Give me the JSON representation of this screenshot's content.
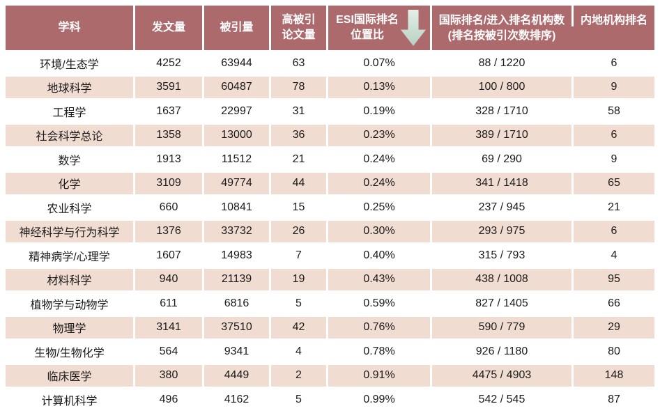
{
  "colors": {
    "header_bg": "#ad6a6d",
    "row_alt_bg": "#f1dcd2",
    "bottom_rule": "#9e575d",
    "arrow_top": "#e3efe7",
    "arrow_bottom": "#b7d1c1"
  },
  "icons": {
    "esi_sort": "arrow-down"
  },
  "header": {
    "subject": "学科",
    "pubs": "发文量",
    "cites": "被引量",
    "highly_cited_line1": "高被引",
    "highly_cited_line2": "论文量",
    "esi_line1": "ESI国际排名",
    "esi_line2": "位置比",
    "intl_line1": "国际排名/进入排名机构数",
    "intl_line2": "(排名按被引次数排序)",
    "mainland": "内地机构排名"
  },
  "chart_data": {
    "type": "table",
    "title": "",
    "columns": [
      "学科",
      "发文量",
      "被引量",
      "高被引论文量",
      "ESI国际排名位置比",
      "国际排名/进入排名机构数(排名按被引次数排序)",
      "内地机构排名"
    ],
    "sort": {
      "column": "ESI国际排名位置比",
      "direction": "ascending-indicator-arrow-down"
    },
    "rows": [
      [
        "环境/生态学",
        "4252",
        "63944",
        "63",
        "0.07%",
        "88 / 1220",
        "6"
      ],
      [
        "地球科学",
        "3591",
        "60487",
        "78",
        "0.13%",
        "100 / 800",
        "9"
      ],
      [
        "工程学",
        "1637",
        "22997",
        "31",
        "0.19%",
        "328 / 1710",
        "58"
      ],
      [
        "社会科学总论",
        "1358",
        "13000",
        "36",
        "0.23%",
        "389 / 1710",
        "6"
      ],
      [
        "数学",
        "1913",
        "11512",
        "21",
        "0.24%",
        "69 / 290",
        "9"
      ],
      [
        "化学",
        "3109",
        "49774",
        "44",
        "0.24%",
        "341 / 1418",
        "65"
      ],
      [
        "农业科学",
        "660",
        "10841",
        "15",
        "0.25%",
        "237 / 945",
        "21"
      ],
      [
        "神经科学与行为科学",
        "1376",
        "33732",
        "26",
        "0.30%",
        "293 / 975",
        "6"
      ],
      [
        "精神病学/心理学",
        "1607",
        "14983",
        "7",
        "0.40%",
        "315 / 793",
        "4"
      ],
      [
        "材料科学",
        "940",
        "21139",
        "19",
        "0.43%",
        "438 / 1008",
        "95"
      ],
      [
        "植物学与动物学",
        "611",
        "6816",
        "5",
        "0.59%",
        "827 / 1405",
        "66"
      ],
      [
        "物理学",
        "3141",
        "37510",
        "42",
        "0.76%",
        "590 / 779",
        "29"
      ],
      [
        "生物/生物化学",
        "564",
        "9341",
        "4",
        "0.78%",
        "926 / 1180",
        "80"
      ],
      [
        "临床医学",
        "380",
        "4449",
        "2",
        "0.91%",
        "4475 / 4903",
        "148"
      ],
      [
        "计算机科学",
        "496",
        "4162",
        "5",
        "0.99%",
        "542 / 545",
        "87"
      ]
    ]
  }
}
